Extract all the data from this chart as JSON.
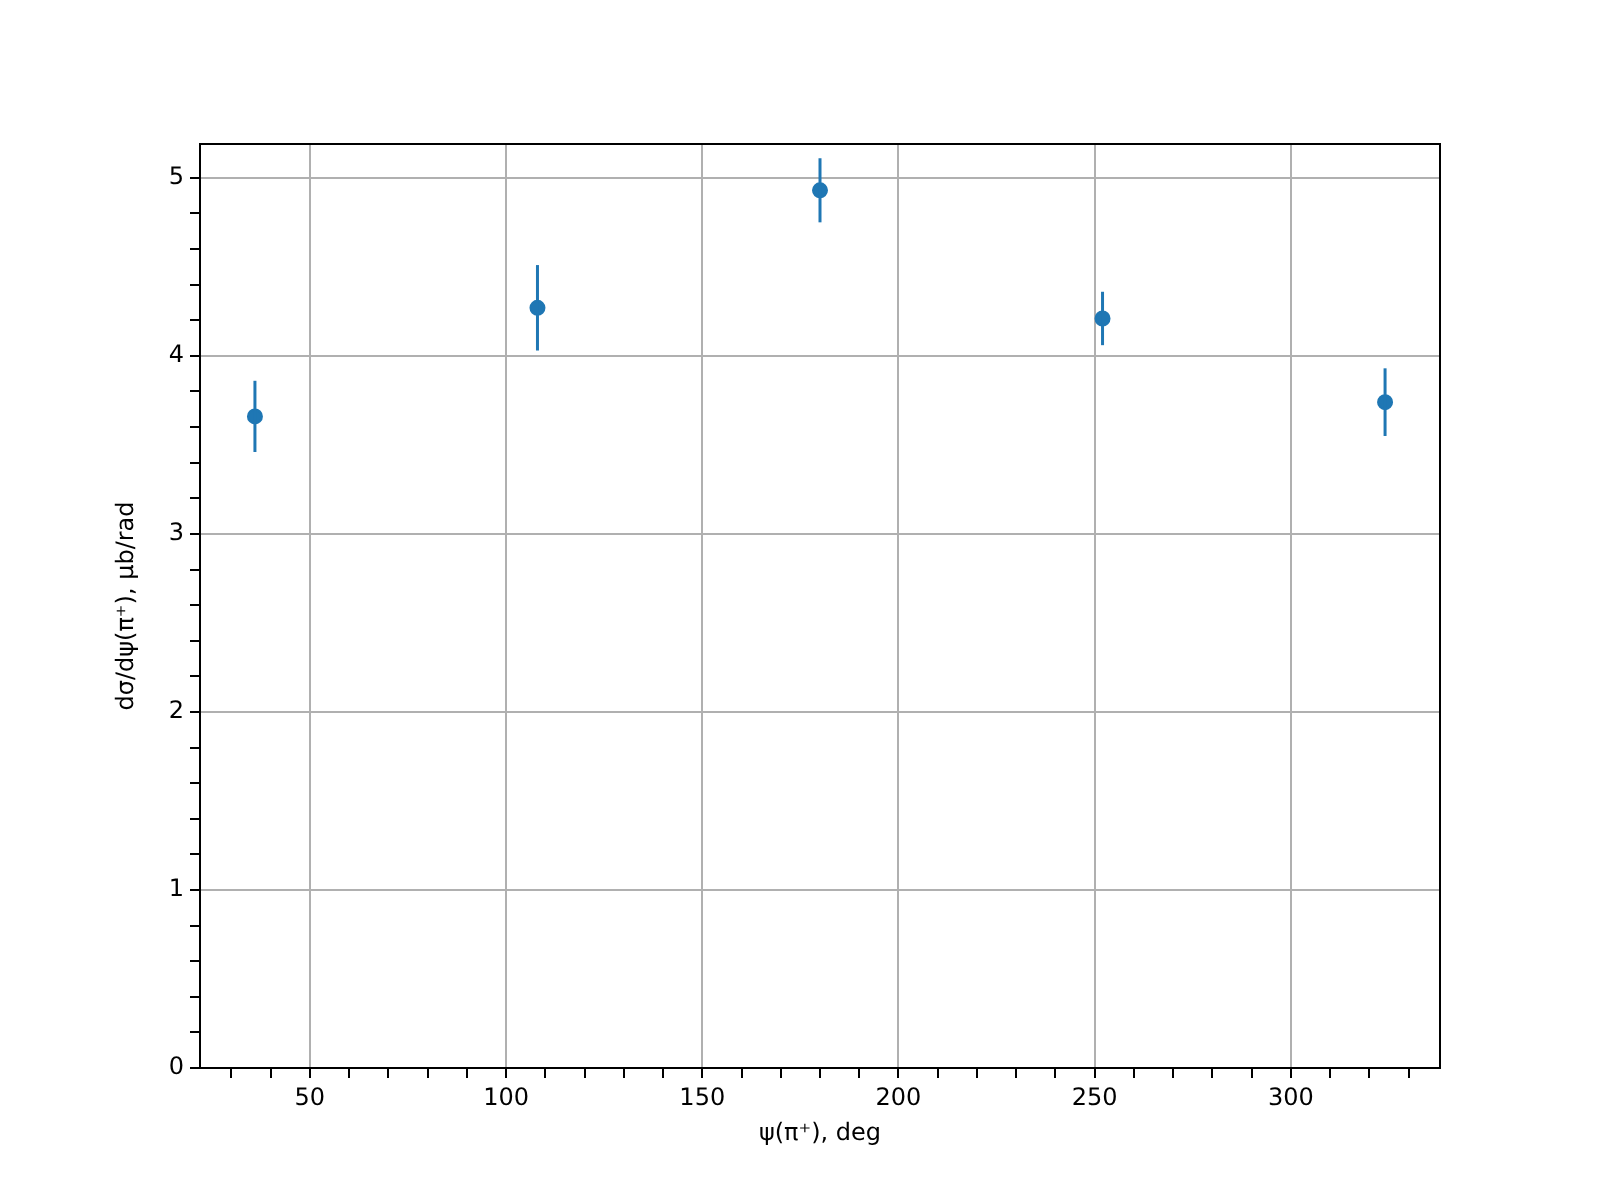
{
  "chart_data": {
    "type": "scatter",
    "xlabel": "ψ(π⁺), deg",
    "ylabel": "dσ/dψ(π⁺), μb/rad",
    "x": [
      36,
      108,
      180,
      252,
      324
    ],
    "series": [
      {
        "color": "#1f77b4",
        "values": [
          3.66,
          4.27,
          4.93,
          4.21,
          3.74
        ],
        "errors": [
          0.2,
          0.24,
          0.18,
          0.15,
          0.19
        ]
      }
    ],
    "xlim": [
      22,
      338
    ],
    "ylim": [
      0,
      5.19
    ],
    "xticks": [
      {
        "value": 30,
        "label": null
      },
      {
        "value": 40,
        "label": null
      },
      50,
      {
        "value": 60,
        "label": null
      },
      {
        "value": 70,
        "label": null
      },
      {
        "value": 80,
        "label": null
      },
      {
        "value": 90,
        "label": null
      },
      100,
      {
        "value": 110,
        "label": null
      },
      {
        "value": 120,
        "label": null
      },
      {
        "value": 130,
        "label": null
      },
      {
        "value": 140,
        "label": null
      },
      150,
      {
        "value": 160,
        "label": null
      },
      {
        "value": 170,
        "label": null
      },
      {
        "value": 180,
        "label": null
      },
      {
        "value": 190,
        "label": null
      },
      200,
      {
        "value": 210,
        "label": null
      },
      {
        "value": 220,
        "label": null
      },
      {
        "value": 230,
        "label": null
      },
      {
        "value": 240,
        "label": null
      },
      250,
      {
        "value": 260,
        "label": null
      },
      {
        "value": 270,
        "label": null
      },
      {
        "value": 280,
        "label": null
      },
      {
        "value": 290,
        "label": null
      },
      300,
      {
        "value": 310,
        "label": null
      },
      {
        "value": 320,
        "label": null
      },
      {
        "value": 330,
        "label": null
      }
    ],
    "yticks": [
      0,
      {
        "value": 0.2,
        "label": null
      },
      {
        "value": 0.4,
        "label": null
      },
      {
        "value": 0.6,
        "label": null
      },
      {
        "value": 0.8,
        "label": null
      },
      1,
      {
        "value": 1.2,
        "label": null
      },
      {
        "value": 1.4,
        "label": null
      },
      {
        "value": 1.6,
        "label": null
      },
      {
        "value": 1.8,
        "label": null
      },
      2,
      {
        "value": 2.2,
        "label": null
      },
      {
        "value": 2.4,
        "label": null
      },
      {
        "value": 2.6,
        "label": null
      },
      {
        "value": 2.8,
        "label": null
      },
      3,
      {
        "value": 3.2,
        "label": null
      },
      {
        "value": 3.4,
        "label": null
      },
      {
        "value": 3.6,
        "label": null
      },
      {
        "value": 3.8,
        "label": null
      },
      4,
      {
        "value": 4.2,
        "label": null
      },
      {
        "value": 4.4,
        "label": null
      },
      {
        "value": 4.6,
        "label": null
      },
      {
        "value": 4.8,
        "label": null
      },
      5
    ],
    "grid": true,
    "marker": "circle",
    "legend": false
  }
}
